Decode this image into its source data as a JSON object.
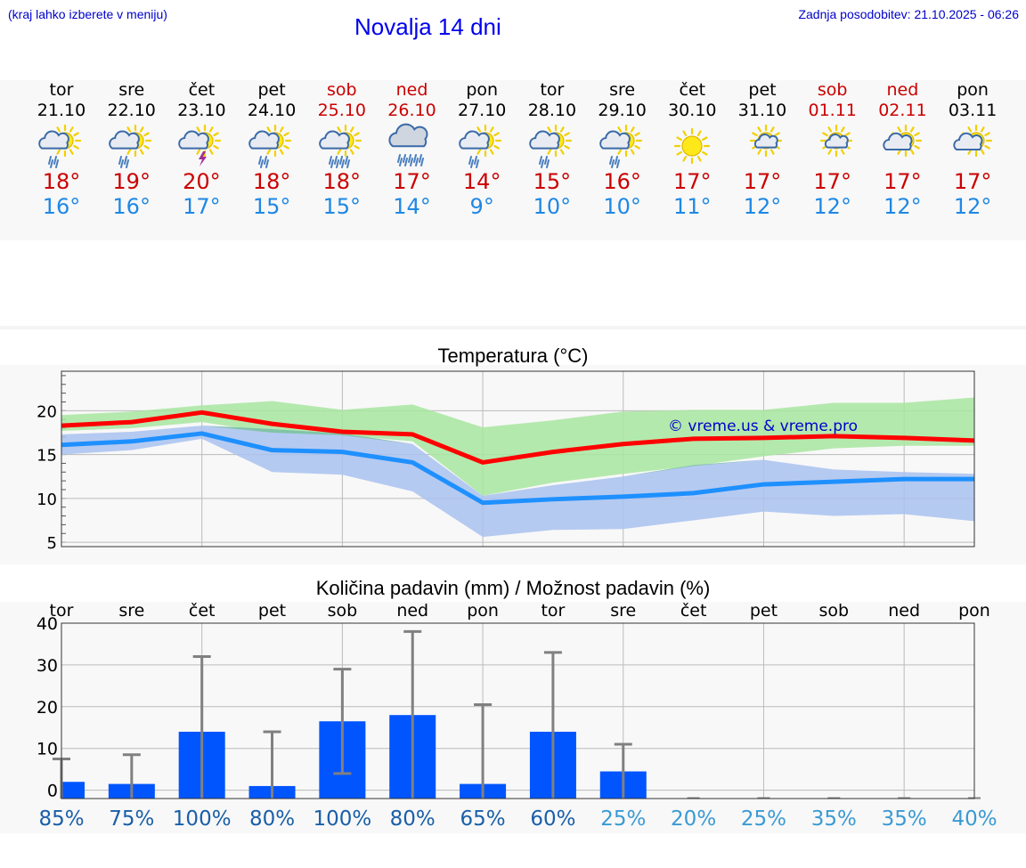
{
  "header": {
    "left_note": "(kraj lahko izberete v meniju)",
    "title": "Novalja 14 dni",
    "updated": "Zadnja posodobitev: 21.10.2025 - 06:26"
  },
  "days": [
    {
      "name": "tor",
      "date": "21.10",
      "weekend": false,
      "icon": "sun-cloud-rain-icon",
      "max": "18°",
      "min": "16°"
    },
    {
      "name": "sre",
      "date": "22.10",
      "weekend": false,
      "icon": "sun-cloud-rain-icon",
      "max": "19°",
      "min": "16°"
    },
    {
      "name": "čet",
      "date": "23.10",
      "weekend": false,
      "icon": "sun-cloud-thunder-icon",
      "max": "20°",
      "min": "17°"
    },
    {
      "name": "pet",
      "date": "24.10",
      "weekend": false,
      "icon": "sun-cloud-rain-icon",
      "max": "18°",
      "min": "15°"
    },
    {
      "name": "sob",
      "date": "25.10",
      "weekend": true,
      "icon": "sun-cloud-heavy-rain-icon",
      "max": "18°",
      "min": "15°"
    },
    {
      "name": "ned",
      "date": "26.10",
      "weekend": true,
      "icon": "cloud-heavy-rain-icon",
      "max": "17°",
      "min": "14°"
    },
    {
      "name": "pon",
      "date": "27.10",
      "weekend": false,
      "icon": "sun-cloud-rain-icon",
      "max": "14°",
      "min": "9°"
    },
    {
      "name": "tor",
      "date": "28.10",
      "weekend": false,
      "icon": "sun-cloud-rain-icon",
      "max": "15°",
      "min": "10°"
    },
    {
      "name": "sre",
      "date": "29.10",
      "weekend": false,
      "icon": "sun-cloud-rain-icon",
      "max": "16°",
      "min": "10°"
    },
    {
      "name": "čet",
      "date": "30.10",
      "weekend": false,
      "icon": "sun-icon",
      "max": "17°",
      "min": "11°"
    },
    {
      "name": "pet",
      "date": "31.10",
      "weekend": false,
      "icon": "sun-small-cloud-icon",
      "max": "17°",
      "min": "12°"
    },
    {
      "name": "sob",
      "date": "01.11",
      "weekend": true,
      "icon": "sun-small-cloud-icon",
      "max": "17°",
      "min": "12°"
    },
    {
      "name": "ned",
      "date": "02.11",
      "weekend": true,
      "icon": "sun-cloud-icon",
      "max": "17°",
      "min": "12°"
    },
    {
      "name": "pon",
      "date": "03.11",
      "weekend": false,
      "icon": "sun-cloud-icon",
      "max": "17°",
      "min": "12°"
    }
  ],
  "colors": {
    "max_temp": "#ff0000",
    "min_temp": "#1e90ff",
    "max_band": "#a8e6a0",
    "min_band": "#a9c2f0",
    "overlap_band": "#7cc3a0",
    "bar": "#0055ff",
    "whisker": "#808080",
    "pct_dark": "#1a5fa8",
    "pct_light": "#3a9ad4"
  },
  "chart_data": [
    {
      "type": "line",
      "title": "Temperatura (°C)",
      "watermark": "© vreme.us & vreme.pro",
      "ylim": [
        4.5,
        24.5
      ],
      "yticks": [
        5,
        10,
        15,
        20
      ],
      "ytick_labels": [
        "5",
        "10",
        "15",
        "20"
      ],
      "series": [
        {
          "name": "max",
          "values": [
            18.3,
            18.7,
            19.8,
            18.5,
            17.6,
            17.3,
            14.1,
            15.3,
            16.2,
            16.8,
            16.9,
            17.1,
            16.9,
            16.6
          ],
          "band_low": [
            17.7,
            18.0,
            18.7,
            17.5,
            17.2,
            16.5,
            10.3,
            11.8,
            12.8,
            13.7,
            14.8,
            15.7,
            16.0,
            16.0
          ],
          "band_high": [
            19.5,
            19.9,
            20.6,
            21.1,
            20.1,
            20.7,
            18.1,
            18.9,
            19.9,
            20.1,
            20.1,
            20.9,
            20.9,
            21.5
          ]
        },
        {
          "name": "min",
          "values": [
            16.1,
            16.5,
            17.4,
            15.5,
            15.3,
            14.1,
            9.5,
            9.9,
            10.2,
            10.6,
            11.6,
            11.9,
            12.2,
            12.2
          ],
          "band_low": [
            15.0,
            15.5,
            16.8,
            13.0,
            12.7,
            10.8,
            5.6,
            6.4,
            6.5,
            7.5,
            8.5,
            8.0,
            8.2,
            7.4
          ],
          "band_high": [
            17.3,
            17.6,
            18.3,
            17.9,
            17.4,
            16.2,
            10.3,
            11.5,
            12.5,
            13.8,
            14.4,
            13.3,
            13.0,
            12.8
          ]
        }
      ]
    },
    {
      "type": "bar",
      "title": "Količina padavin (mm) / Možnost padavin (%)",
      "categories": [
        "tor",
        "sre",
        "čet",
        "pet",
        "sob",
        "ned",
        "pon",
        "tor",
        "sre",
        "čet",
        "pet",
        "sob",
        "ned",
        "pon"
      ],
      "ylim": [
        -2,
        40
      ],
      "yticks": [
        0,
        10,
        20,
        30,
        40
      ],
      "ytick_labels": [
        "0",
        "10",
        "20",
        "30",
        "40"
      ],
      "values": [
        2.0,
        1.5,
        14.0,
        1.0,
        16.5,
        18.0,
        1.5,
        14.0,
        4.5,
        0,
        0,
        0,
        0,
        0
      ],
      "whisker_low": [
        null,
        null,
        null,
        null,
        4.0,
        null,
        null,
        null,
        null,
        null,
        null,
        null,
        null,
        null
      ],
      "whisker_high": [
        7.5,
        8.5,
        32.0,
        14.0,
        29.0,
        38.0,
        20.5,
        33.0,
        11.0,
        0,
        0,
        0,
        0,
        0
      ],
      "probability": [
        "85%",
        "75%",
        "100%",
        "80%",
        "100%",
        "80%",
        "65%",
        "60%",
        "25%",
        "20%",
        "25%",
        "35%",
        "35%",
        "40%"
      ]
    }
  ]
}
